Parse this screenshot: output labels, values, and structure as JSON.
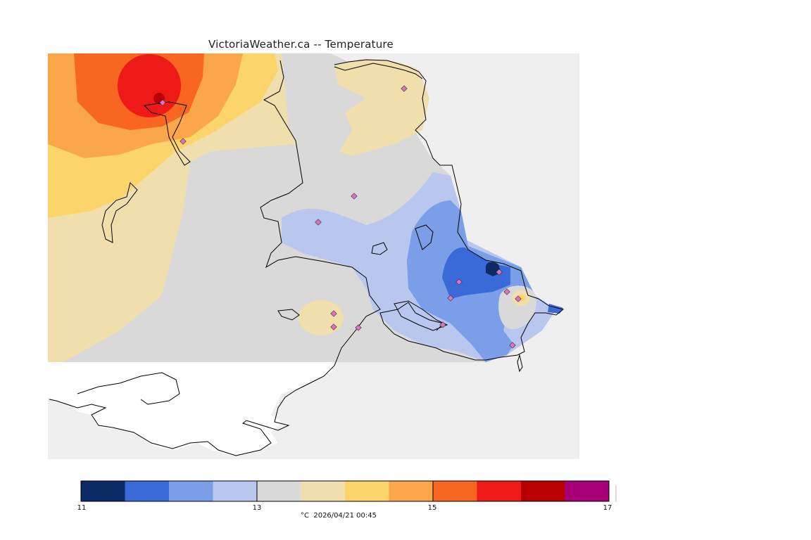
{
  "title": "VictoriaWeather.ca -- Temperature",
  "legend": {
    "units": "°C",
    "timestamp": "2026/04/21 00:45",
    "min": 11,
    "max": 17,
    "ticks": [
      {
        "label": "11",
        "value": 11
      },
      {
        "label": "13",
        "value": 13
      },
      {
        "label": "15",
        "value": 15
      },
      {
        "label": "17",
        "value": 17
      }
    ],
    "bands": [
      "#0b2a66",
      "#3a6ad8",
      "#7b9ee8",
      "#b9c7ef",
      "#d9d9d9",
      "#f0dfad",
      "#fcd46c",
      "#f9a74a",
      "#f86621",
      "#ee1a17",
      "#b80004",
      "#a80076"
    ]
  },
  "colors": {
    "land_background": "#d9d9d9",
    "water": "#efefef",
    "coast": "#000000",
    "station_marker": "#e070c0"
  }
}
